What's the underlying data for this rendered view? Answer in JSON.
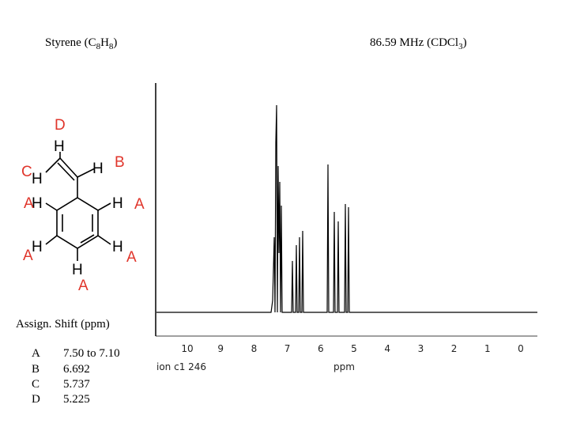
{
  "header": {
    "left_title": [
      "Styrene (C",
      "8",
      "H",
      "8",
      ")"
    ],
    "right_title": [
      "86.59 MHz (CDCl",
      "3",
      ")"
    ]
  },
  "molecule": {
    "h_labels": [
      "H",
      "H",
      "H",
      "H",
      "H",
      "H",
      "H",
      "H"
    ],
    "group_labels": [
      "D",
      "B",
      "C",
      "A",
      "A",
      "A",
      "A",
      "A"
    ]
  },
  "table": {
    "header": "Assign. Shift (ppm)",
    "rows": [
      [
        "A",
        "7.50 to 7.10"
      ],
      [
        "B",
        "6.692"
      ],
      [
        "C",
        "5.737"
      ],
      [
        "D",
        "5.225"
      ]
    ]
  },
  "spectrum": {
    "axis_ticks": [
      "10",
      "9",
      "8",
      "7",
      "6",
      "5",
      "4",
      "3",
      "2",
      "1",
      "0"
    ],
    "axis_label": "ppm",
    "footnote": "ion c1 246"
  }
}
